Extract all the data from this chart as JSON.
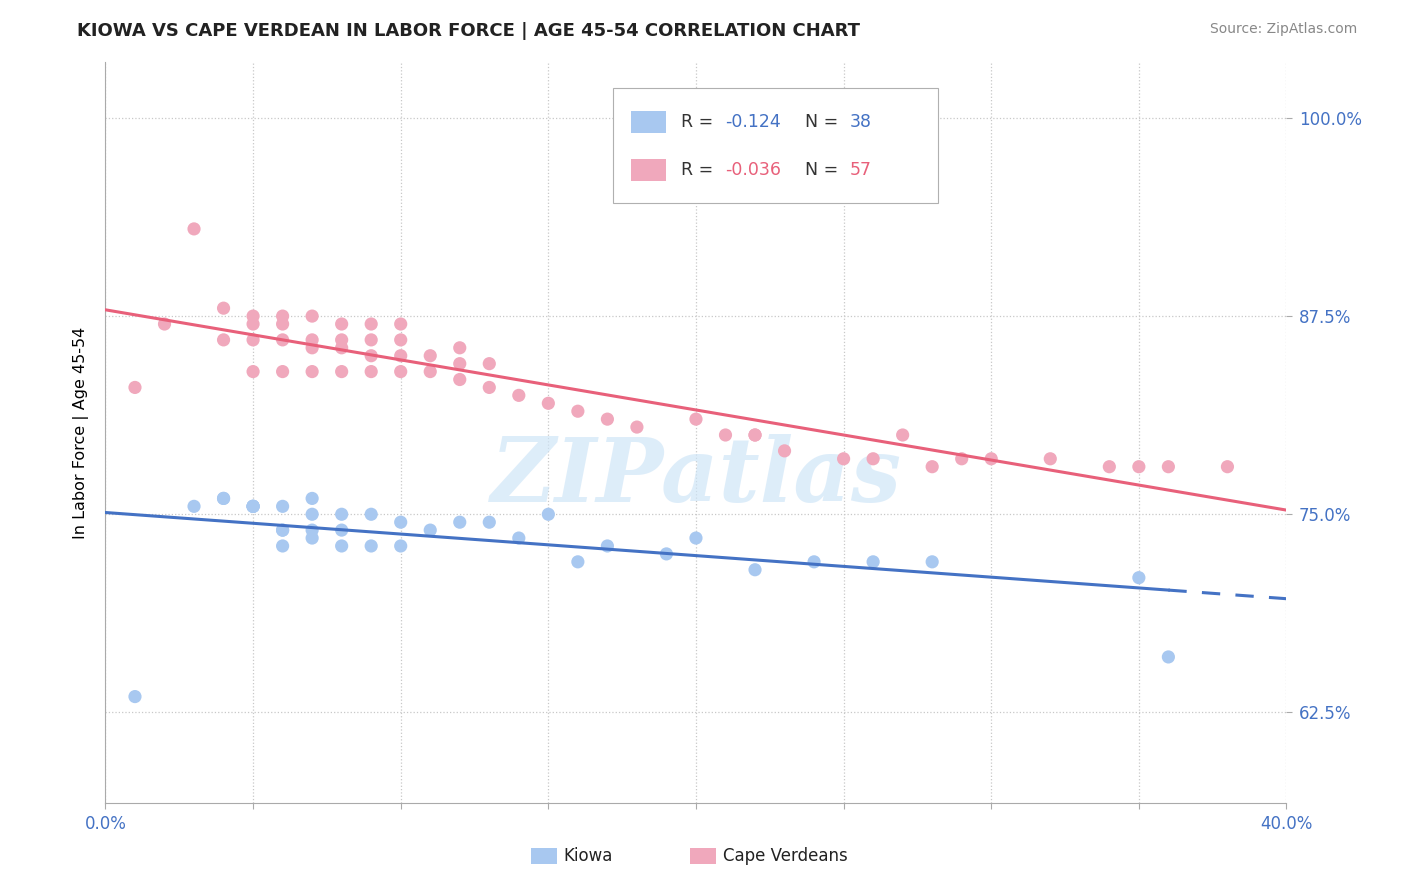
{
  "title": "KIOWA VS CAPE VERDEAN IN LABOR FORCE | AGE 45-54 CORRELATION CHART",
  "source": "Source: ZipAtlas.com",
  "ylabel": "In Labor Force | Age 45-54",
  "xlim": [
    0.0,
    0.4
  ],
  "ylim": [
    0.568,
    1.035
  ],
  "yticks": [
    0.625,
    0.75,
    0.875,
    1.0
  ],
  "ytick_labels": [
    "62.5%",
    "75.0%",
    "87.5%",
    "100.0%"
  ],
  "xticks": [
    0.0,
    0.05,
    0.1,
    0.15,
    0.2,
    0.25,
    0.3,
    0.35,
    0.4
  ],
  "xtick_labels": [
    "0.0%",
    "",
    "",
    "",
    "",
    "",
    "",
    "",
    "40.0%"
  ],
  "kiowa_color": "#a8c8f0",
  "cape_color": "#f0a8bc",
  "kiowa_line_color": "#4472c4",
  "cape_line_color": "#e8607a",
  "kiowa_R": "-0.124",
  "kiowa_N": "38",
  "cape_R": "-0.036",
  "cape_N": "57",
  "watermark_text": "ZIPatlas",
  "kiowa_x": [
    0.01,
    0.03,
    0.04,
    0.04,
    0.05,
    0.05,
    0.05,
    0.05,
    0.06,
    0.06,
    0.06,
    0.06,
    0.07,
    0.07,
    0.07,
    0.07,
    0.08,
    0.08,
    0.08,
    0.09,
    0.09,
    0.1,
    0.1,
    0.11,
    0.12,
    0.13,
    0.14,
    0.15,
    0.16,
    0.17,
    0.19,
    0.2,
    0.22,
    0.24,
    0.26,
    0.28,
    0.35,
    0.36
  ],
  "kiowa_y": [
    0.635,
    0.755,
    0.76,
    0.76,
    0.755,
    0.755,
    0.755,
    0.755,
    0.755,
    0.74,
    0.74,
    0.73,
    0.735,
    0.74,
    0.75,
    0.76,
    0.73,
    0.74,
    0.75,
    0.73,
    0.75,
    0.73,
    0.745,
    0.74,
    0.745,
    0.745,
    0.735,
    0.75,
    0.72,
    0.73,
    0.725,
    0.735,
    0.715,
    0.72,
    0.72,
    0.72,
    0.71,
    0.66
  ],
  "cape_x": [
    0.01,
    0.02,
    0.03,
    0.04,
    0.04,
    0.05,
    0.05,
    0.05,
    0.05,
    0.06,
    0.06,
    0.06,
    0.06,
    0.07,
    0.07,
    0.07,
    0.07,
    0.08,
    0.08,
    0.08,
    0.08,
    0.09,
    0.09,
    0.09,
    0.09,
    0.1,
    0.1,
    0.1,
    0.1,
    0.11,
    0.11,
    0.12,
    0.12,
    0.12,
    0.13,
    0.13,
    0.14,
    0.15,
    0.16,
    0.17,
    0.18,
    0.2,
    0.22,
    0.23,
    0.25,
    0.27,
    0.28,
    0.3,
    0.32,
    0.34,
    0.36,
    0.38,
    0.22,
    0.35,
    0.26,
    0.29,
    0.21
  ],
  "cape_y": [
    0.83,
    0.87,
    0.93,
    0.88,
    0.86,
    0.84,
    0.86,
    0.87,
    0.875,
    0.84,
    0.86,
    0.87,
    0.875,
    0.84,
    0.855,
    0.86,
    0.875,
    0.84,
    0.855,
    0.86,
    0.87,
    0.84,
    0.85,
    0.86,
    0.87,
    0.84,
    0.85,
    0.86,
    0.87,
    0.84,
    0.85,
    0.835,
    0.845,
    0.855,
    0.83,
    0.845,
    0.825,
    0.82,
    0.815,
    0.81,
    0.805,
    0.81,
    0.8,
    0.79,
    0.785,
    0.8,
    0.78,
    0.785,
    0.785,
    0.78,
    0.78,
    0.78,
    0.8,
    0.78,
    0.785,
    0.785,
    0.8
  ]
}
